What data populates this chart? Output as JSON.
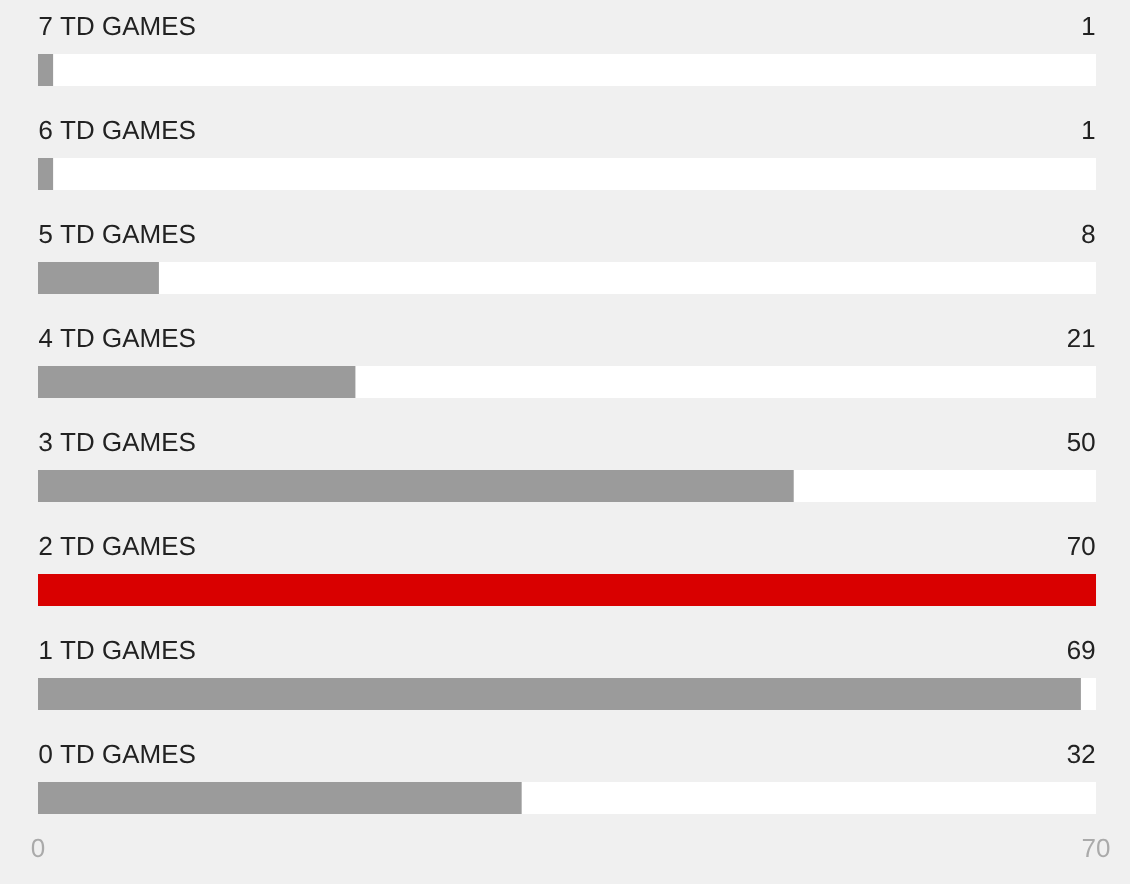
{
  "chart_data": {
    "type": "bar",
    "orientation": "horizontal",
    "categories": [
      "7 TD GAMES",
      "6 TD GAMES",
      "5 TD GAMES",
      "4 TD GAMES",
      "3 TD GAMES",
      "2 TD GAMES",
      "1 TD GAMES",
      "0 TD GAMES"
    ],
    "values": [
      1,
      1,
      8,
      21,
      50,
      70,
      69,
      32
    ],
    "colors": [
      "#9b9b9b",
      "#9b9b9b",
      "#9b9b9b",
      "#9b9b9b",
      "#9b9b9b",
      "#d90000",
      "#9b9b9b",
      "#9b9b9b"
    ],
    "xlim": [
      0,
      70
    ],
    "xticks": [
      0,
      70
    ],
    "data_labels": true
  }
}
